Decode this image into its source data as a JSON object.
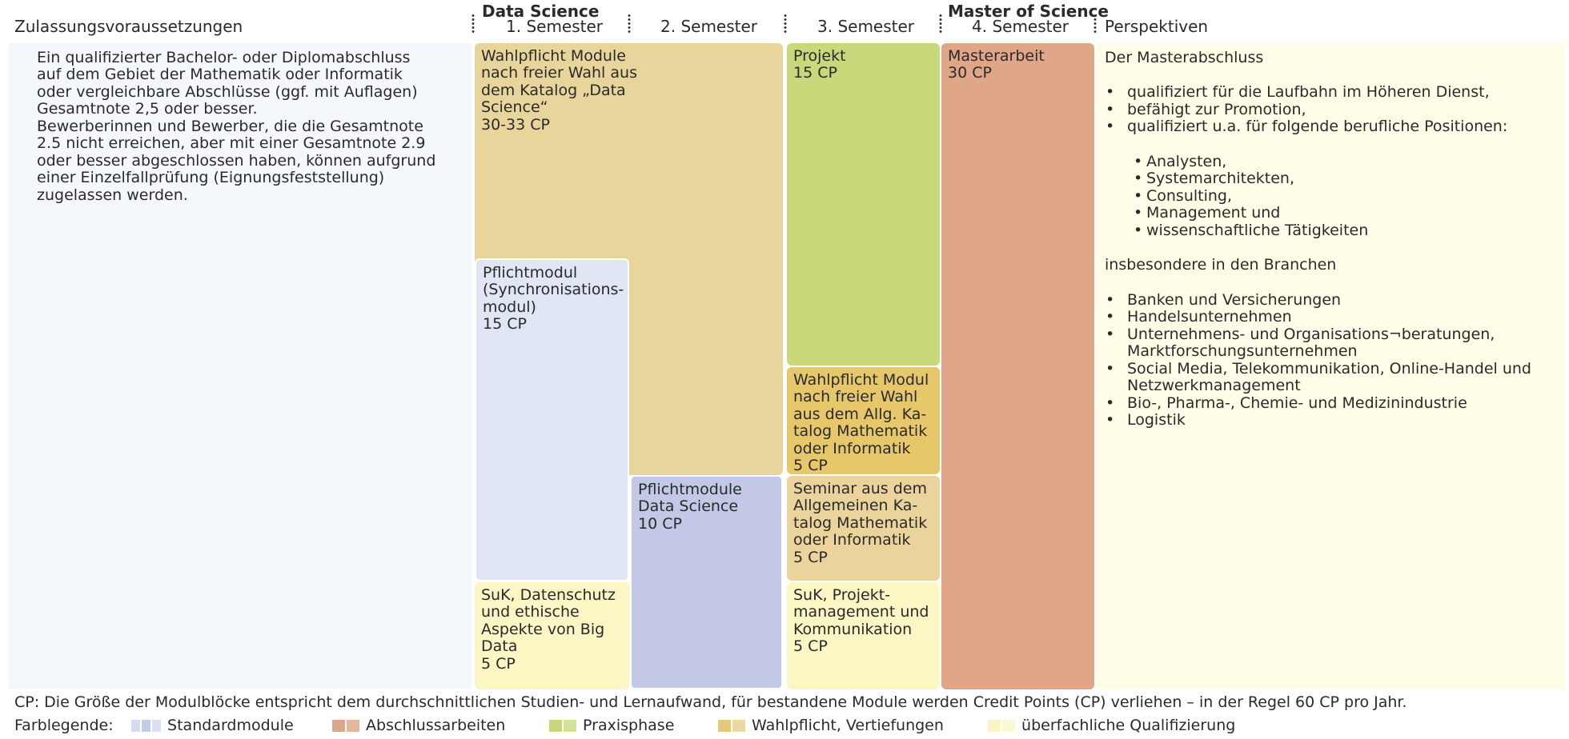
{
  "header": {
    "col_requirements": "Zulassungsvoraussetzungen",
    "program_name": "Data Science",
    "sem1": "1. Semester",
    "sem2": "2. Semester",
    "sem3": "3. Semester",
    "degree": "Master of Science",
    "sem4": "4. Semester",
    "col_perspectives": "Perspektiven"
  },
  "requirements": {
    "text": "Ein qualifizierter Bachelor- oder Diplomabschluss\nauf dem Gebiet der Mathematik oder Informatik\noder vergleichbare Abschlüsse (ggf. mit Auflagen)\nGesamtnote 2,5 oder besser.\nBewerberinnen und Bewerber, die die Gesamtnote\n2.5 nicht erreichen, aber mit einer Gesamtnote 2.9\noder besser abgeschlossen haben, können aufgrund\neiner Einzelfallprüfung (Eignungsfeststellung)\nzugelassen werden."
  },
  "modules": {
    "wahlpflicht_ds": {
      "title": "Wahlpflicht Module\nnach freier Wahl aus\ndem Katalog „Data\nScience“",
      "cp": "30-33 CP"
    },
    "pflicht_sync": {
      "title": "Pflichtmodul\n(Synchronisations-\nmodul)",
      "cp": "15 CP"
    },
    "suk_daten": {
      "title": "SuK, Datenschutz\nund ethische\nAspekte von Big\nData",
      "cp": "5 CP"
    },
    "pflicht_ds": {
      "title": "Pflichtmodule\nData Science",
      "cp": "10 CP"
    },
    "projekt": {
      "title": "Projekt",
      "cp": "15 CP"
    },
    "wahlpflicht_allg": {
      "title": "Wahlpflicht Modul\nnach freier Wahl\naus dem Allg. Ka-\ntalog Mathematik\noder Informatik",
      "cp": "5 CP"
    },
    "seminar": {
      "title": "Seminar aus dem\nAllgemeinen Ka-\ntalog Mathematik\noder Informatik",
      "cp": "5 CP"
    },
    "suk_projekt": {
      "title": "SuK, Projekt-\nmanagement und\nKommunikation",
      "cp": "5 CP"
    },
    "masterarbeit": {
      "title": "Masterarbeit",
      "cp": "30 CP"
    }
  },
  "perspectives": {
    "intro": "Der Masterabschluss",
    "list1": [
      "qualifiziert für die Laufbahn im Höheren Dienst,",
      "befähigt zur Promotion,",
      "qualifiziert u.a. für folgende berufliche Positionen:"
    ],
    "positions": [
      "Analysten,",
      "Systemarchitekten,",
      "Consulting,",
      "Management und",
      "wissenschaftliche Tätigkeiten"
    ],
    "branches_intro": "insbesondere in den Branchen",
    "branches": [
      "Banken und Versicherungen",
      "Handelsunternehmen",
      "Unternehmens- und Organisations¬beratungen,\nMarktforschungsunternehmen",
      "Social Media, Telekommunikation, Online-Handel und\nNetzwerkmanagement",
      "Bio-, Pharma-, Chemie- und Medizinindustrie",
      "Logistik"
    ]
  },
  "footer": {
    "cp_note": "CP: Die Größe der Modulblöcke entspricht dem durchschnittlichen Studien- und Lernaufwand, für bestandene Module werden Credit Points (CP) verliehen – in der Regel 60 CP pro Jahr.",
    "legend_title": "Farblegende:",
    "legend": [
      {
        "label": "Standardmodule",
        "colors": [
          "#d3dcf0",
          "#c2cbe8",
          "#d8e0f2"
        ]
      },
      {
        "label": "Abschlussarbeiten",
        "colors": [
          "#dca789",
          "#e6b79a"
        ]
      },
      {
        "label": "Praxisphase",
        "colors": [
          "#c6d97a",
          "#d3e29a"
        ]
      },
      {
        "label": "Wahlpflicht, Vertiefungen",
        "colors": [
          "#e6c978",
          "#ecd8a0"
        ]
      },
      {
        "label": "überfachliche Qualifizierung",
        "colors": [
          "#fbf5c2",
          "#fcf8d3"
        ]
      }
    ]
  },
  "colors": {
    "req_bg": "#f4f8fc",
    "persp_bg": "#fefde8",
    "wahlpflicht_ds": "#e8d59b",
    "pflicht_sync": "#e0e6f4",
    "suk": "#fbf6c4",
    "pflicht_ds": "#c2c8e6",
    "projekt": "#c7d97a",
    "wahlpflicht_allg": "#e6c76a",
    "seminar": "#ebd49c",
    "masterarbeit": "#dfa688"
  }
}
